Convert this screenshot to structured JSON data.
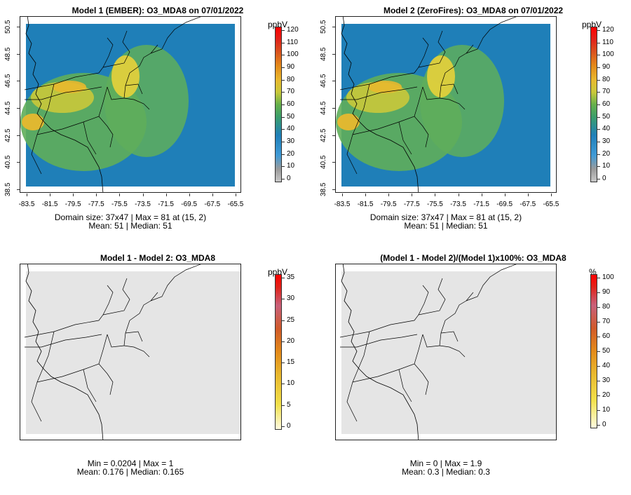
{
  "panels": {
    "p1": {
      "title": "Model 1 (EMBER): O3_MDA8 on 07/01/2022",
      "unit": "ppbV",
      "ticks": [
        "120",
        "110",
        "100",
        "90",
        "80",
        "70",
        "60",
        "50",
        "40",
        "30",
        "20",
        "10",
        "0"
      ],
      "stat1": "Domain size: 37x47 | Max = 81 at (15, 2)",
      "stat2": "Mean: 51 |  Median: 51"
    },
    "p2": {
      "title": "Model 2 (ZeroFires): O3_MDA8 on 07/01/2022",
      "unit": "ppbV",
      "ticks": [
        "120",
        "110",
        "100",
        "90",
        "80",
        "70",
        "60",
        "50",
        "40",
        "30",
        "20",
        "10",
        "0"
      ],
      "stat1": "Domain size: 37x47 | Max = 81 at (15, 2)",
      "stat2": "Mean: 51 |  Median: 51"
    },
    "p3": {
      "title": "Model 1 - Model 2: O3_MDA8",
      "unit": "ppbV",
      "ticks": [
        "35",
        "30",
        "25",
        "20",
        "15",
        "10",
        "5",
        "0"
      ],
      "stat1": "Min = 0.0204 | Max = 1",
      "stat2": "Mean: 0.176 |  Median: 0.165"
    },
    "p4": {
      "title": "(Model 1 - Model 2)/(Model 1)x100%: O3_MDA8",
      "unit": "%",
      "ticks": [
        "100",
        "90",
        "80",
        "70",
        "60",
        "50",
        "40",
        "30",
        "20",
        "10",
        "0"
      ],
      "stat1": "Min = 0 | Max = 1.9",
      "stat2": "Mean: 0.3 |  Median: 0.3"
    }
  },
  "axes": {
    "x_ticks": [
      "-83.5",
      "-81.5",
      "-79.5",
      "-77.5",
      "-75.5",
      "-73.5",
      "-71.5",
      "-69.5",
      "-67.5",
      "-65.5"
    ],
    "y_ticks": [
      "38.5",
      "40.5",
      "42.5",
      "44.5",
      "46.5",
      "48.5",
      "50.5"
    ]
  },
  "colors": {
    "high_ozone": "#e8b82e",
    "mid_ozone": "#5fae5a",
    "low_ozone": "#1f7fb8",
    "diff_background": "#e5e5e5"
  }
}
